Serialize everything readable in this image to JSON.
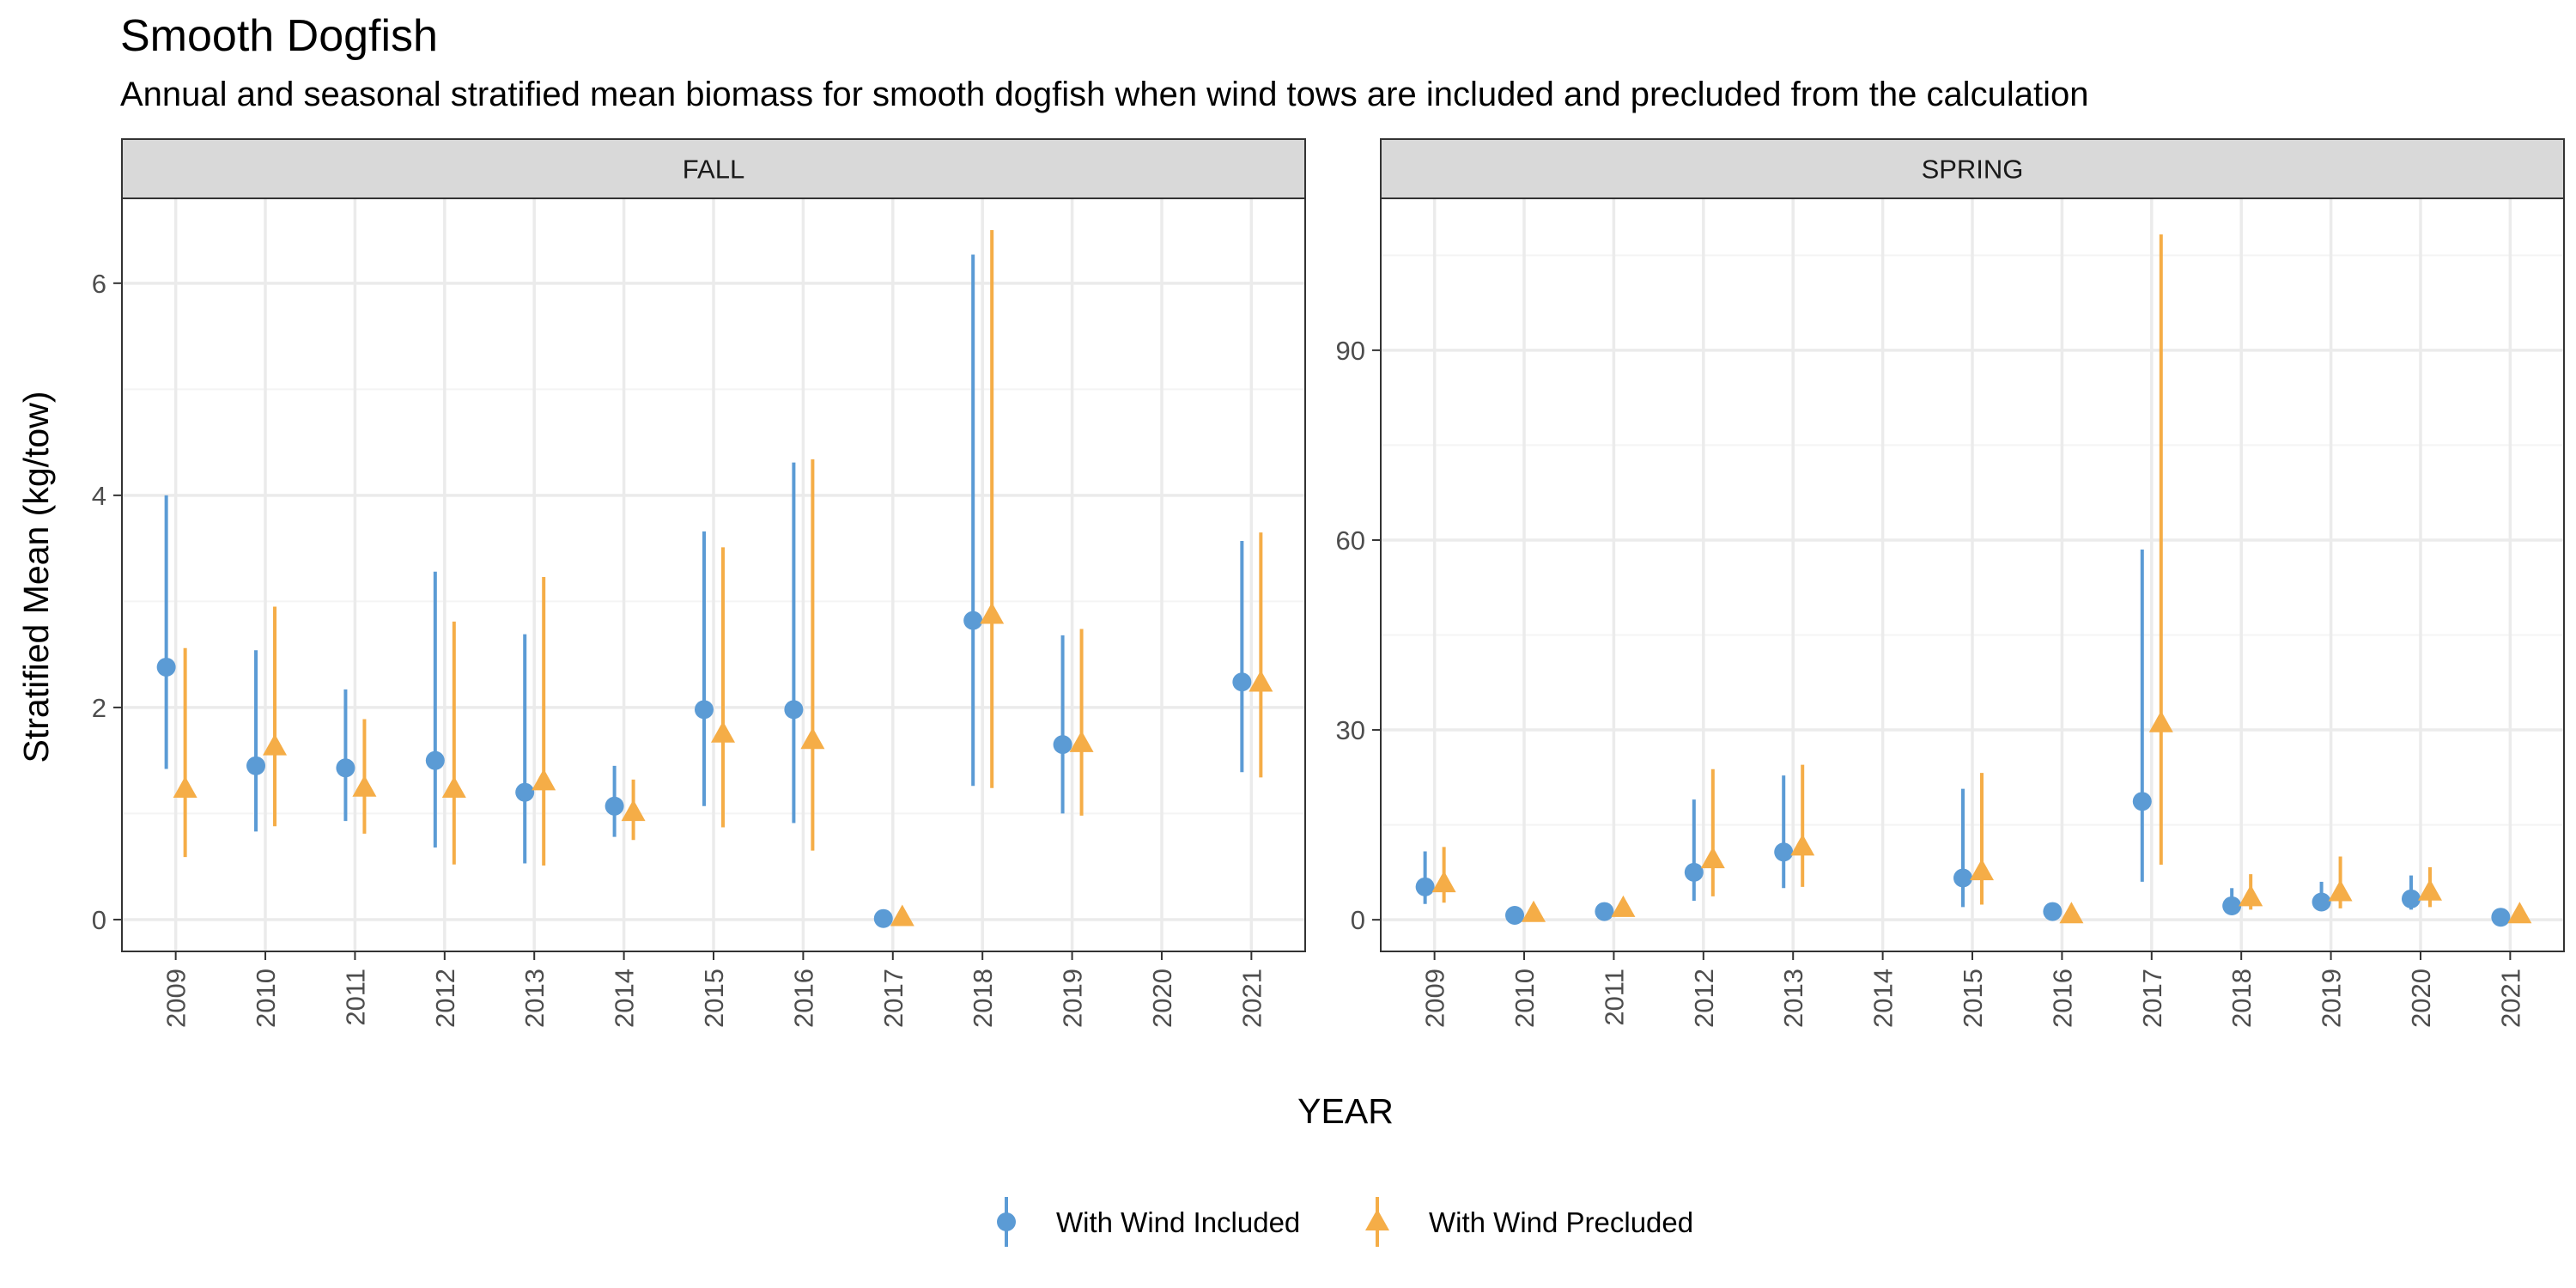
{
  "title": "Smooth Dogfish",
  "subtitle": "Annual and seasonal stratified mean biomass for smooth dogfish when wind tows are included and precluded from the calculation",
  "colors": {
    "included": "#5b9bd5",
    "precluded": "#f5ad47",
    "strip_bg": "#d9d9d9",
    "grid_major": "#ebebeb",
    "grid_minor": "#f4f4f4"
  },
  "chart_data": {
    "type": "scatter",
    "x_label": "YEAR",
    "y_label": "Stratified Mean (kg/tow)",
    "legend": {
      "position": "bottom",
      "items": [
        "With Wind Included",
        "With Wind Precluded"
      ]
    },
    "grid": true,
    "categories": [
      "2009",
      "2010",
      "2011",
      "2012",
      "2013",
      "2014",
      "2015",
      "2016",
      "2017",
      "2018",
      "2019",
      "2020",
      "2021"
    ],
    "panels": [
      {
        "name": "FALL",
        "ylim": [
          -0.3,
          6.8
        ],
        "yticks": [
          0,
          2,
          4,
          6
        ],
        "series": [
          {
            "name": "With Wind Included",
            "marker": "circle",
            "points": [
              {
                "x": "2009",
                "y": 2.38,
                "low": 1.42,
                "high": 4.0
              },
              {
                "x": "2010",
                "y": 1.45,
                "low": 0.83,
                "high": 2.54
              },
              {
                "x": "2011",
                "y": 1.43,
                "low": 0.93,
                "high": 2.17
              },
              {
                "x": "2012",
                "y": 1.5,
                "low": 0.68,
                "high": 3.28
              },
              {
                "x": "2013",
                "y": 1.2,
                "low": 0.53,
                "high": 2.69
              },
              {
                "x": "2014",
                "y": 1.07,
                "low": 0.78,
                "high": 1.45
              },
              {
                "x": "2015",
                "y": 1.98,
                "low": 1.07,
                "high": 3.66
              },
              {
                "x": "2016",
                "y": 1.98,
                "low": 0.91,
                "high": 4.31
              },
              {
                "x": "2017",
                "y": 0.01,
                "low": 0.0,
                "high": 0.03
              },
              {
                "x": "2018",
                "y": 2.82,
                "low": 1.26,
                "high": 6.27
              },
              {
                "x": "2019",
                "y": 1.65,
                "low": 1.0,
                "high": 2.68
              },
              {
                "x": "2021",
                "y": 2.24,
                "low": 1.39,
                "high": 3.57
              }
            ]
          },
          {
            "name": "With Wind Precluded",
            "marker": "triangle",
            "points": [
              {
                "x": "2009",
                "y": 1.23,
                "low": 0.59,
                "high": 2.56
              },
              {
                "x": "2010",
                "y": 1.63,
                "low": 0.88,
                "high": 2.95
              },
              {
                "x": "2011",
                "y": 1.24,
                "low": 0.81,
                "high": 1.89
              },
              {
                "x": "2012",
                "y": 1.23,
                "low": 0.52,
                "high": 2.81
              },
              {
                "x": "2013",
                "y": 1.3,
                "low": 0.51,
                "high": 3.23
              },
              {
                "x": "2014",
                "y": 1.01,
                "low": 0.75,
                "high": 1.32
              },
              {
                "x": "2015",
                "y": 1.75,
                "low": 0.87,
                "high": 3.51
              },
              {
                "x": "2016",
                "y": 1.69,
                "low": 0.65,
                "high": 4.34
              },
              {
                "x": "2017",
                "y": 0.02,
                "low": 0.0,
                "high": 0.04
              },
              {
                "x": "2018",
                "y": 2.87,
                "low": 1.24,
                "high": 6.5
              },
              {
                "x": "2019",
                "y": 1.66,
                "low": 0.98,
                "high": 2.74
              },
              {
                "x": "2021",
                "y": 2.23,
                "low": 1.34,
                "high": 3.65
              }
            ]
          }
        ]
      },
      {
        "name": "SPRING",
        "ylim": [
          -5,
          114
        ],
        "yticks": [
          0,
          30,
          60,
          90
        ],
        "series": [
          {
            "name": "With Wind Included",
            "marker": "circle",
            "points": [
              {
                "x": "2009",
                "y": 5.2,
                "low": 2.5,
                "high": 10.8
              },
              {
                "x": "2010",
                "y": 0.7,
                "low": 0.4,
                "high": 1.2
              },
              {
                "x": "2011",
                "y": 1.3,
                "low": 0.8,
                "high": 2.1
              },
              {
                "x": "2012",
                "y": 7.5,
                "low": 3.0,
                "high": 19.0
              },
              {
                "x": "2013",
                "y": 10.7,
                "low": 5.0,
                "high": 22.8
              },
              {
                "x": "2015",
                "y": 6.6,
                "low": 2.0,
                "high": 20.7
              },
              {
                "x": "2016",
                "y": 1.3,
                "low": 0.7,
                "high": 2.3
              },
              {
                "x": "2017",
                "y": 18.7,
                "low": 6.0,
                "high": 58.5
              },
              {
                "x": "2018",
                "y": 2.2,
                "low": 1.0,
                "high": 5.0
              },
              {
                "x": "2019",
                "y": 2.8,
                "low": 1.4,
                "high": 6.0
              },
              {
                "x": "2020",
                "y": 3.3,
                "low": 1.6,
                "high": 7.0
              },
              {
                "x": "2021",
                "y": 0.4,
                "low": 0.2,
                "high": 0.8
              }
            ]
          },
          {
            "name": "With Wind Precluded",
            "marker": "triangle",
            "points": [
              {
                "x": "2009",
                "y": 5.7,
                "low": 2.7,
                "high": 11.5
              },
              {
                "x": "2010",
                "y": 1.0,
                "low": 0.5,
                "high": 1.8
              },
              {
                "x": "2011",
                "y": 1.8,
                "low": 1.0,
                "high": 3.0
              },
              {
                "x": "2012",
                "y": 9.5,
                "low": 3.7,
                "high": 23.8
              },
              {
                "x": "2013",
                "y": 11.5,
                "low": 5.2,
                "high": 24.5
              },
              {
                "x": "2015",
                "y": 7.6,
                "low": 2.4,
                "high": 23.2
              },
              {
                "x": "2016",
                "y": 0.8,
                "low": 0.4,
                "high": 1.4
              },
              {
                "x": "2017",
                "y": 31.0,
                "low": 8.7,
                "high": 108.3
              },
              {
                "x": "2018",
                "y": 3.5,
                "low": 1.6,
                "high": 7.2
              },
              {
                "x": "2019",
                "y": 4.3,
                "low": 1.8,
                "high": 10.0
              },
              {
                "x": "2020",
                "y": 4.4,
                "low": 2.0,
                "high": 8.3
              },
              {
                "x": "2021",
                "y": 0.8,
                "low": 0.4,
                "high": 1.5
              }
            ]
          }
        ]
      }
    ]
  }
}
